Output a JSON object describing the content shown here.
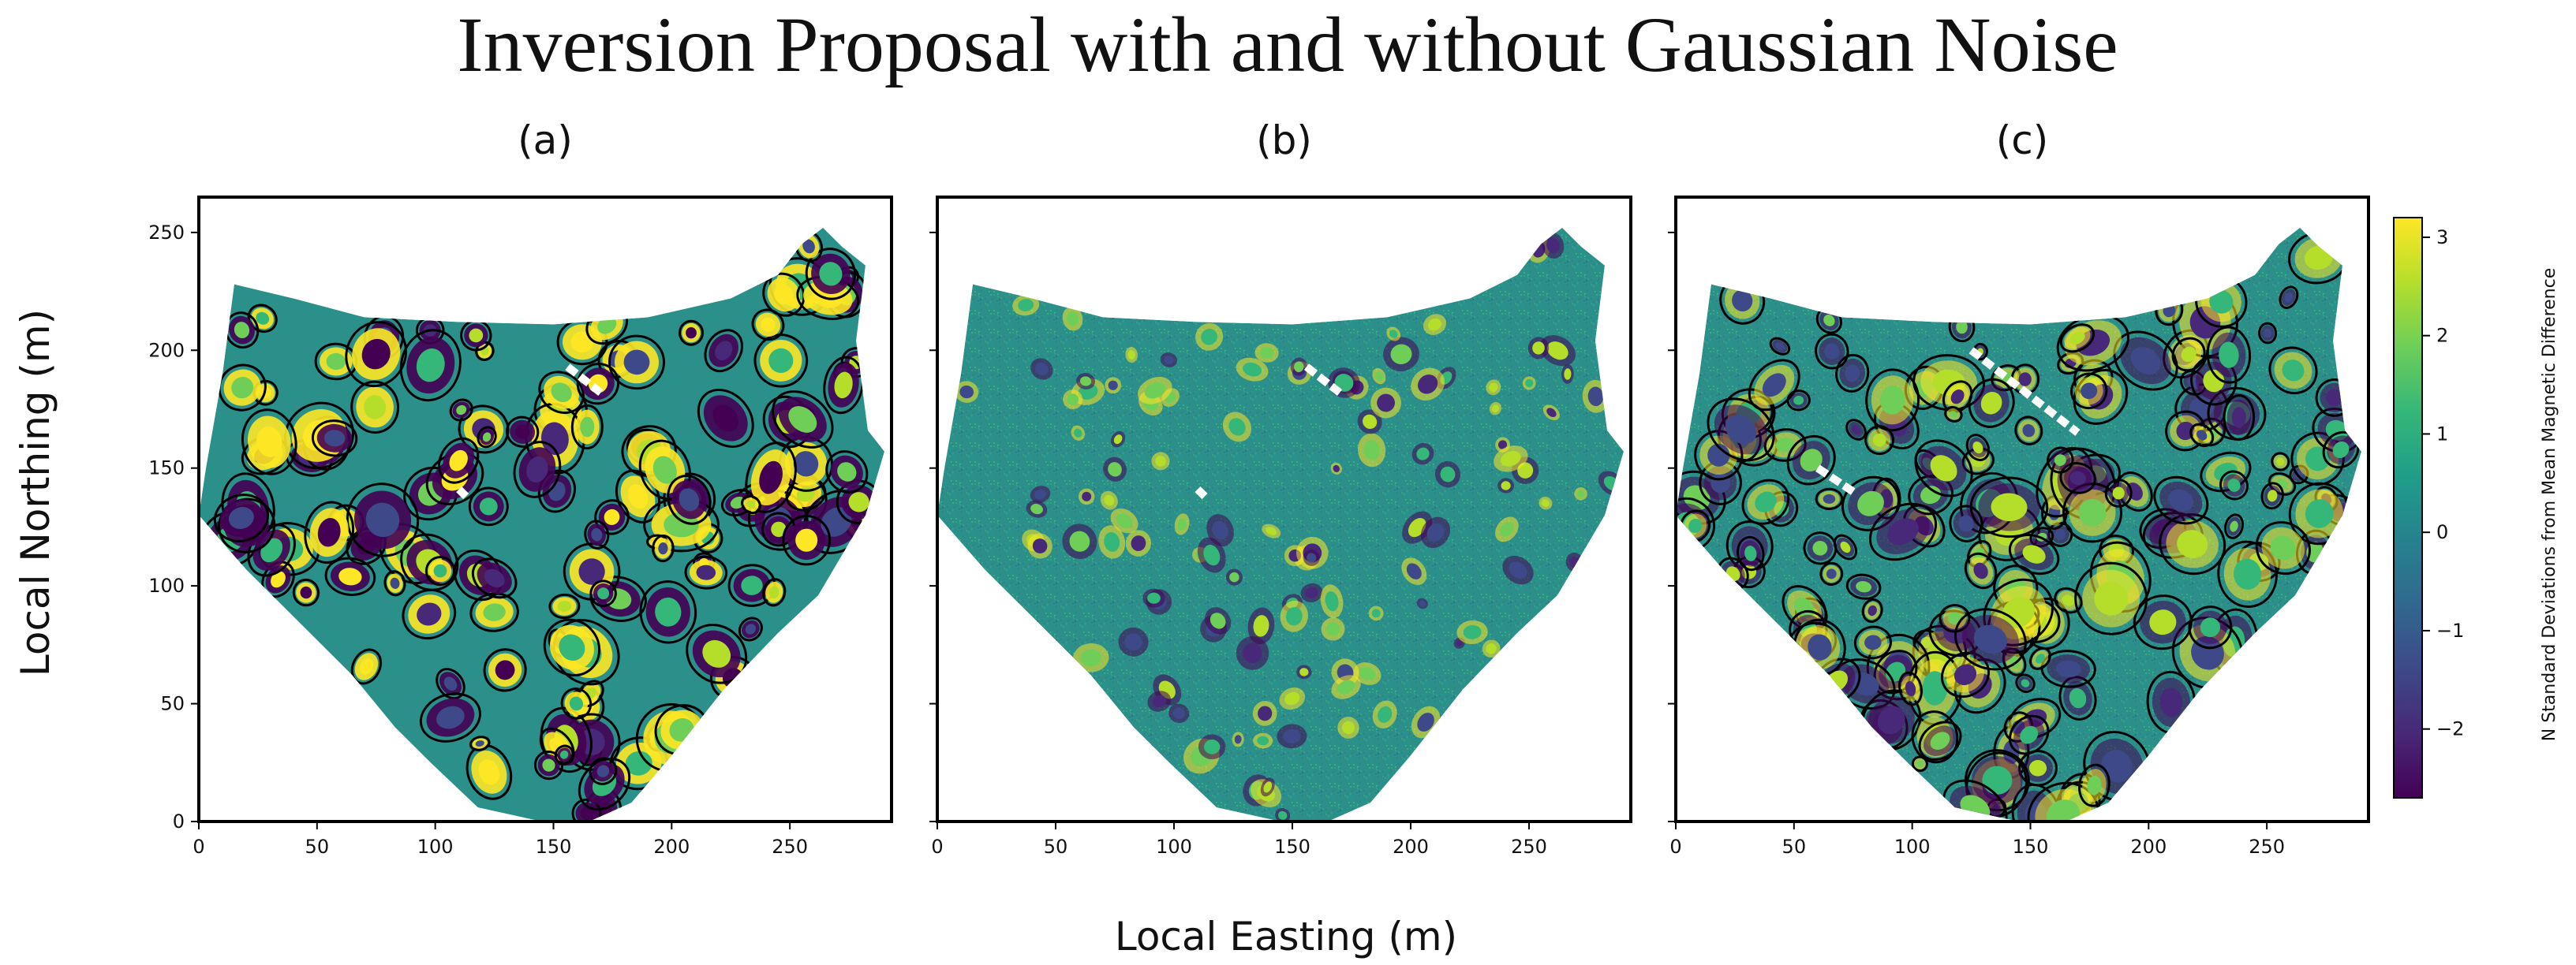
{
  "figure": {
    "title": "Inversion Proposal with and without Gaussian Noise",
    "xlabel": "Local Easting (m)",
    "ylabel": "Local Northing (m)"
  },
  "colors": {
    "colormap": "viridis",
    "viridis_stops": [
      "#440154",
      "#482878",
      "#3e4989",
      "#31688e",
      "#26828e",
      "#1f9e89",
      "#35b779",
      "#6ece58",
      "#b5de2b",
      "#fde725"
    ],
    "background_field": "#2b8f8a",
    "anomaly_outline": "#000000",
    "frame": "#000000"
  },
  "chart_data": [
    {
      "type": "heatmap",
      "panel_title": "(a)",
      "description_of_overlay": "black ellipse outlines marking proposed anomaly locations",
      "xlim": [
        0,
        293
      ],
      "ylim": [
        0,
        265
      ],
      "xticks": [
        0,
        50,
        100,
        150,
        200,
        250
      ],
      "yticks": [
        0,
        50,
        100,
        150,
        200,
        250
      ],
      "boundary": [
        [
          15,
          228
        ],
        [
          40,
          222
        ],
        [
          70,
          214
        ],
        [
          110,
          212
        ],
        [
          150,
          211
        ],
        [
          190,
          214
        ],
        [
          225,
          222
        ],
        [
          245,
          232
        ],
        [
          255,
          245
        ],
        [
          264,
          252
        ],
        [
          272,
          244
        ],
        [
          282,
          236
        ],
        [
          278,
          204
        ],
        [
          283,
          166
        ],
        [
          290,
          157
        ],
        [
          282,
          130
        ],
        [
          262,
          96
        ],
        [
          245,
          80
        ],
        [
          222,
          56
        ],
        [
          200,
          28
        ],
        [
          183,
          8
        ],
        [
          165,
          0
        ],
        [
          145,
          0
        ],
        [
          118,
          6
        ],
        [
          98,
          25
        ],
        [
          83,
          40
        ],
        [
          65,
          62
        ],
        [
          45,
          82
        ],
        [
          20,
          107
        ],
        [
          0,
          130
        ],
        [
          3,
          150
        ],
        [
          10,
          190
        ]
      ],
      "anomaly_count_approx": 140,
      "gap_marks": [
        [
          [
            156,
            193
          ],
          [
            170,
            182
          ]
        ],
        [
          [
            110,
            141
          ],
          [
            113,
            138
          ]
        ]
      ],
      "outline_circles": true
    },
    {
      "type": "heatmap",
      "panel_title": "(b)",
      "description_of_overlay": "",
      "xlim": [
        0,
        293
      ],
      "ylim": [
        0,
        265
      ],
      "xticks": [
        0,
        50,
        100,
        150,
        200,
        250
      ],
      "yticks": [
        0,
        50,
        100,
        150,
        200,
        250
      ],
      "boundary": [
        [
          15,
          228
        ],
        [
          40,
          222
        ],
        [
          70,
          214
        ],
        [
          110,
          212
        ],
        [
          150,
          211
        ],
        [
          190,
          214
        ],
        [
          225,
          222
        ],
        [
          245,
          232
        ],
        [
          255,
          245
        ],
        [
          264,
          252
        ],
        [
          272,
          244
        ],
        [
          282,
          236
        ],
        [
          278,
          204
        ],
        [
          283,
          166
        ],
        [
          290,
          157
        ],
        [
          282,
          130
        ],
        [
          262,
          96
        ],
        [
          245,
          80
        ],
        [
          222,
          56
        ],
        [
          200,
          28
        ],
        [
          183,
          8
        ],
        [
          165,
          0
        ],
        [
          145,
          0
        ],
        [
          118,
          6
        ],
        [
          98,
          25
        ],
        [
          83,
          40
        ],
        [
          65,
          62
        ],
        [
          45,
          82
        ],
        [
          20,
          107
        ],
        [
          0,
          130
        ],
        [
          3,
          150
        ],
        [
          10,
          190
        ]
      ],
      "anomaly_count_approx": 120,
      "gap_marks": [
        [
          [
            156,
            193
          ],
          [
            170,
            182
          ]
        ],
        [
          [
            110,
            141
          ],
          [
            113,
            138
          ]
        ]
      ],
      "noise": true,
      "outline_circles": false
    },
    {
      "type": "heatmap",
      "panel_title": "(c)",
      "description_of_overlay": "black ellipse outlines over a noisy field",
      "xlim": [
        0,
        293
      ],
      "ylim": [
        0,
        265
      ],
      "xticks": [
        0,
        50,
        100,
        150,
        200,
        250
      ],
      "yticks": [
        0,
        50,
        100,
        150,
        200,
        250
      ],
      "boundary": [
        [
          15,
          228
        ],
        [
          40,
          222
        ],
        [
          70,
          214
        ],
        [
          110,
          212
        ],
        [
          150,
          211
        ],
        [
          190,
          214
        ],
        [
          225,
          222
        ],
        [
          245,
          232
        ],
        [
          255,
          245
        ],
        [
          264,
          252
        ],
        [
          272,
          244
        ],
        [
          282,
          236
        ],
        [
          278,
          204
        ],
        [
          283,
          166
        ],
        [
          290,
          157
        ],
        [
          282,
          130
        ],
        [
          262,
          96
        ],
        [
          245,
          80
        ],
        [
          222,
          56
        ],
        [
          200,
          28
        ],
        [
          183,
          8
        ],
        [
          165,
          0
        ],
        [
          145,
          0
        ],
        [
          118,
          6
        ],
        [
          98,
          25
        ],
        [
          83,
          40
        ],
        [
          65,
          62
        ],
        [
          45,
          82
        ],
        [
          20,
          107
        ],
        [
          0,
          130
        ],
        [
          3,
          150
        ],
        [
          10,
          190
        ]
      ],
      "anomaly_count_approx": 180,
      "gap_marks": [
        [
          [
            125,
            200
          ],
          [
            170,
            165
          ]
        ],
        [
          [
            60,
            150
          ],
          [
            75,
            140
          ]
        ]
      ],
      "noise": true,
      "outline_circles": true
    }
  ],
  "colorbar": {
    "label": "N Standard Deviations from Mean Magnetic Difference",
    "range": [
      -2.7,
      3.2
    ],
    "ticks": [
      {
        "value": 3,
        "label": "3"
      },
      {
        "value": 2,
        "label": "2"
      },
      {
        "value": 1,
        "label": "1"
      },
      {
        "value": 0,
        "label": "0"
      },
      {
        "value": -1,
        "label": "−1"
      },
      {
        "value": -2,
        "label": "−2"
      }
    ]
  }
}
